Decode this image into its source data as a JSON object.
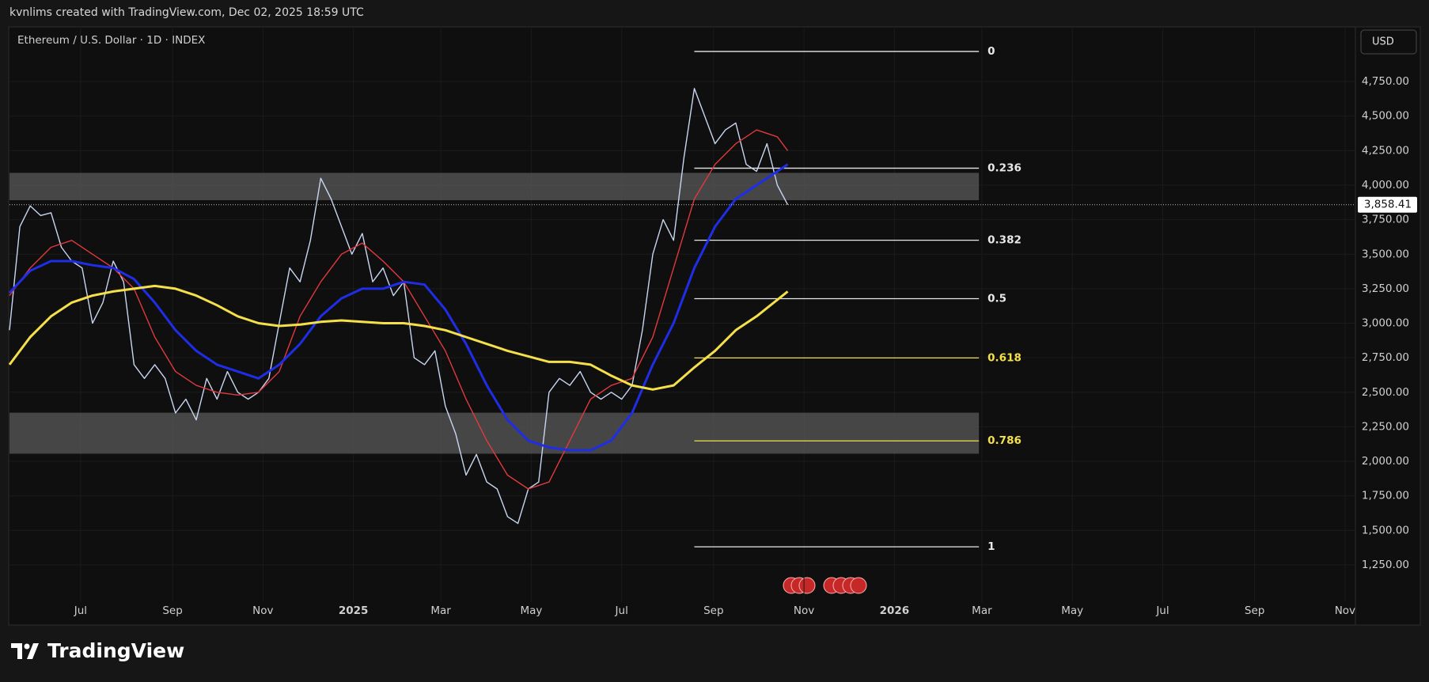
{
  "header": {
    "credit": "kvnlims created with TradingView.com, Dec 02, 2025 18:59 UTC"
  },
  "footer": {
    "brand": "TradingView"
  },
  "chart_data": {
    "type": "line",
    "title": "Ethereum / U.S. Dollar · 1D · INDEX",
    "currency": "USD",
    "xlim": [
      0,
      908
    ],
    "xticks": [
      {
        "value": 48,
        "label": "Jul"
      },
      {
        "value": 110,
        "label": "Sep"
      },
      {
        "value": 171,
        "label": "Nov"
      },
      {
        "value": 232,
        "label": "2025"
      },
      {
        "value": 291,
        "label": "Mar"
      },
      {
        "value": 352,
        "label": "May"
      },
      {
        "value": 413,
        "label": "Jul"
      },
      {
        "value": 475,
        "label": "Sep"
      },
      {
        "value": 536,
        "label": "Nov"
      },
      {
        "value": 597,
        "label": "2026"
      },
      {
        "value": 656,
        "label": "Mar"
      },
      {
        "value": 717,
        "label": "May"
      },
      {
        "value": 778,
        "label": "Jul"
      },
      {
        "value": 840,
        "label": "Sep"
      },
      {
        "value": 901,
        "label": "Nov"
      }
    ],
    "ylim": [
      820,
      5146
    ],
    "yticks": [
      {
        "value": 1250,
        "label": "1,250.00"
      },
      {
        "value": 1500,
        "label": "1,500.00"
      },
      {
        "value": 1750,
        "label": "1,750.00"
      },
      {
        "value": 2000,
        "label": "2,000.00"
      },
      {
        "value": 2250,
        "label": "2,250.00"
      },
      {
        "value": 2500,
        "label": "2,500.00"
      },
      {
        "value": 2750,
        "label": "2,750.00"
      },
      {
        "value": 3000,
        "label": "3,000.00"
      },
      {
        "value": 3250,
        "label": "3,250.00"
      },
      {
        "value": 3500,
        "label": "3,500.00"
      },
      {
        "value": 3750,
        "label": "3,750.00"
      },
      {
        "value": 4000,
        "label": "4,000.00"
      },
      {
        "value": 4250,
        "label": "4,250.00"
      },
      {
        "value": 4500,
        "label": "4,500.00"
      },
      {
        "value": 4750,
        "label": "4,750.00"
      }
    ],
    "grid": true,
    "zones": [
      {
        "from": 3891,
        "to": 4089,
        "x": [
          0,
          654
        ]
      },
      {
        "from": 2055,
        "to": 2352,
        "x": [
          0,
          654
        ]
      }
    ],
    "series": [
      {
        "color": "#c9d6f2",
        "width": 1.4,
        "x": [
          0,
          7,
          14,
          21,
          28,
          35,
          42,
          49,
          56,
          63,
          70,
          77,
          84,
          91,
          98,
          105,
          112,
          119,
          126,
          133,
          140,
          147,
          154,
          161,
          168,
          175,
          182,
          189,
          196,
          203,
          210,
          217,
          224,
          231,
          238,
          245,
          252,
          259,
          266,
          273,
          280,
          287,
          294,
          301,
          308,
          315,
          322,
          329,
          336,
          343,
          350,
          357,
          364,
          371,
          378,
          385,
          392,
          399,
          406,
          413,
          420,
          427,
          434,
          441,
          448,
          455,
          462,
          469,
          476,
          483,
          490,
          497,
          504,
          511,
          518,
          525
        ],
        "values": [
          2950,
          3700,
          3850,
          3780,
          3800,
          3550,
          3450,
          3400,
          3000,
          3150,
          3450,
          3300,
          2700,
          2600,
          2700,
          2600,
          2350,
          2450,
          2300,
          2600,
          2450,
          2650,
          2500,
          2450,
          2500,
          2600,
          3000,
          3400,
          3300,
          3600,
          4050,
          3900,
          3700,
          3500,
          3650,
          3300,
          3400,
          3200,
          3300,
          2750,
          2700,
          2800,
          2400,
          2200,
          1900,
          2050,
          1850,
          1800,
          1600,
          1550,
          1800,
          1850,
          2500,
          2600,
          2550,
          2650,
          2500,
          2450,
          2500,
          2450,
          2550,
          2950,
          3500,
          3750,
          3600,
          4200,
          4700,
          4500,
          4300,
          4400,
          4450,
          4150,
          4100,
          4300,
          4000,
          3858.41
        ]
      },
      {
        "color": "#e0393e",
        "width": 1.4,
        "x": [
          0,
          14,
          28,
          42,
          56,
          70,
          84,
          98,
          112,
          126,
          140,
          154,
          168,
          182,
          196,
          210,
          224,
          238,
          252,
          266,
          280,
          294,
          308,
          322,
          336,
          350,
          364,
          378,
          392,
          406,
          420,
          434,
          448,
          462,
          476,
          490,
          504,
          518,
          525
        ],
        "values": [
          3200,
          3400,
          3550,
          3600,
          3500,
          3400,
          3250,
          2900,
          2650,
          2550,
          2500,
          2480,
          2500,
          2650,
          3050,
          3300,
          3500,
          3580,
          3450,
          3300,
          3050,
          2800,
          2450,
          2150,
          1900,
          1800,
          1850,
          2150,
          2450,
          2550,
          2600,
          2900,
          3400,
          3900,
          4150,
          4300,
          4400,
          4350,
          4250
        ]
      },
      {
        "color": "#1f2ee6",
        "width": 3,
        "x": [
          0,
          14,
          28,
          42,
          56,
          70,
          84,
          98,
          112,
          126,
          140,
          154,
          168,
          182,
          196,
          210,
          224,
          238,
          252,
          266,
          280,
          294,
          308,
          322,
          336,
          350,
          364,
          378,
          392,
          406,
          420,
          434,
          448,
          462,
          476,
          490,
          504,
          518,
          525
        ],
        "values": [
          3220,
          3380,
          3450,
          3450,
          3420,
          3400,
          3320,
          3150,
          2950,
          2800,
          2700,
          2650,
          2600,
          2700,
          2850,
          3050,
          3180,
          3250,
          3250,
          3300,
          3280,
          3100,
          2850,
          2550,
          2300,
          2150,
          2100,
          2080,
          2080,
          2150,
          2350,
          2700,
          3000,
          3400,
          3700,
          3900,
          4000,
          4100,
          4150
        ]
      },
      {
        "color": "#f5e04a",
        "width": 3,
        "x": [
          0,
          14,
          28,
          42,
          56,
          70,
          84,
          98,
          112,
          126,
          140,
          154,
          168,
          182,
          196,
          210,
          224,
          238,
          252,
          266,
          280,
          294,
          308,
          322,
          336,
          350,
          364,
          378,
          392,
          406,
          420,
          434,
          448,
          462,
          476,
          490,
          504,
          518,
          525
        ],
        "values": [
          2700,
          2900,
          3050,
          3150,
          3200,
          3230,
          3250,
          3270,
          3250,
          3200,
          3130,
          3050,
          3000,
          2980,
          2990,
          3010,
          3020,
          3010,
          3000,
          3000,
          2980,
          2950,
          2900,
          2850,
          2800,
          2760,
          2720,
          2720,
          2700,
          2620,
          2550,
          2520,
          2550,
          2680,
          2800,
          2950,
          3050,
          3170,
          3230
        ]
      }
    ],
    "fib": {
      "x": [
        462,
        654
      ],
      "levels": [
        {
          "value": 4968,
          "label": "0",
          "color": "#e8e8e8"
        },
        {
          "value": 4123,
          "label": "0.236",
          "color": "#e8e8e8"
        },
        {
          "value": 3601,
          "label": "0.382",
          "color": "#e8e8e8"
        },
        {
          "value": 3178,
          "label": "0.5",
          "color": "#e8e8e8"
        },
        {
          "value": 2749,
          "label": "0.618",
          "color": "#f5e04a"
        },
        {
          "value": 2148,
          "label": "0.786",
          "color": "#f5e04a"
        },
        {
          "value": 1381,
          "label": "1",
          "color": "#e8e8e8"
        }
      ]
    },
    "last_price": {
      "value": 3858.41,
      "label": "3,858.41"
    }
  }
}
